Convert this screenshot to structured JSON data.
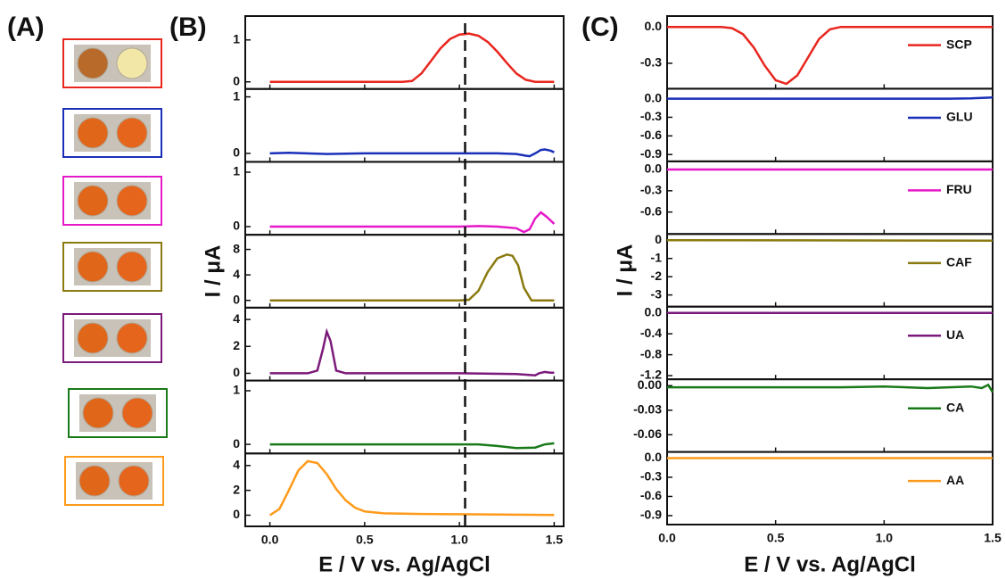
{
  "panel_labels": [
    "(A)",
    "(B)",
    "(C)"
  ],
  "chart_data": [
    {
      "type": "line",
      "xlabel": "E / V vs. Ag/AgCl",
      "ylabel": "I / μA",
      "xlim": [
        -0.13,
        1.55
      ],
      "xticks": [
        {
          "value": 0,
          "label": "0.0"
        },
        0.5,
        {
          "value": 1,
          "label": "1.0"
        },
        1.5
      ],
      "vline": 1.03,
      "subplots": [
        {
          "ylim": [
            -0.17,
            1.57
          ],
          "yticks": [
            0,
            1
          ],
          "x": [
            0,
            0.7,
            0.75,
            0.8,
            0.85,
            0.9,
            0.95,
            1.0,
            1.05,
            1.1,
            1.15,
            1.2,
            1.25,
            1.3,
            1.35,
            1.4,
            1.5
          ],
          "series": [
            {
              "color": "#e8261e",
              "values": [
                0,
                0,
                0.02,
                0.2,
                0.5,
                0.8,
                1.02,
                1.13,
                1.15,
                1.1,
                0.95,
                0.72,
                0.45,
                0.2,
                0.05,
                0,
                0
              ]
            }
          ]
        },
        {
          "ylim": [
            -0.15,
            1.14
          ],
          "yticks": [
            0,
            1
          ],
          "x": [
            0,
            0.1,
            0.3,
            0.5,
            1.0,
            1.2,
            1.3,
            1.35,
            1.37,
            1.4,
            1.43,
            1.45,
            1.48,
            1.5
          ],
          "series": [
            {
              "color": "#1a2fb8",
              "values": [
                0,
                0.01,
                -0.01,
                0,
                0,
                0,
                -0.01,
                -0.04,
                -0.05,
                0,
                0.06,
                0.07,
                0.05,
                0.02
              ]
            }
          ]
        },
        {
          "ylim": [
            -0.15,
            1.19
          ],
          "yticks": [
            0,
            1
          ],
          "x": [
            0,
            0.5,
            1.0,
            1.1,
            1.2,
            1.3,
            1.34,
            1.37,
            1.4,
            1.43,
            1.46,
            1.5
          ],
          "series": [
            {
              "color": "#e619c8",
              "values": [
                0,
                0,
                0,
                0.01,
                0,
                -0.03,
                -0.1,
                -0.05,
                0.15,
                0.26,
                0.18,
                0.05
              ]
            }
          ]
        },
        {
          "ylim": [
            -1.14,
            10.3
          ],
          "yticks": [
            0,
            4,
            8
          ],
          "x": [
            0,
            1.0,
            1.05,
            1.1,
            1.15,
            1.2,
            1.25,
            1.28,
            1.31,
            1.34,
            1.38,
            1.5
          ],
          "series": [
            {
              "color": "#8a7a10",
              "values": [
                0,
                0,
                0.1,
                1.5,
                4.5,
                6.6,
                7.2,
                7.0,
                5.5,
                2,
                0,
                0
              ]
            }
          ]
        },
        {
          "ylim": [
            -0.54,
            4.88
          ],
          "yticks": [
            0,
            2,
            4
          ],
          "x": [
            0,
            0.2,
            0.25,
            0.28,
            0.3,
            0.32,
            0.35,
            0.4,
            1.0,
            1.3,
            1.4,
            1.42,
            1.45,
            1.48,
            1.5
          ],
          "series": [
            {
              "color": "#7b1a7b",
              "values": [
                0,
                0,
                0.2,
                1.8,
                3.1,
                2.4,
                0.2,
                0,
                0,
                -0.05,
                -0.15,
                0,
                0.1,
                0.05,
                0.05
              ]
            }
          ]
        },
        {
          "ylim": [
            -0.17,
            1.19
          ],
          "yticks": [
            0,
            1
          ],
          "x": [
            0,
            0.5,
            1.0,
            1.1,
            1.2,
            1.3,
            1.4,
            1.45,
            1.5
          ],
          "series": [
            {
              "color": "#1a7a1a",
              "values": [
                0,
                0,
                0,
                0,
                -0.03,
                -0.07,
                -0.06,
                0,
                0.02
              ]
            }
          ]
        },
        {
          "ylim": [
            -0.9,
            4.97
          ],
          "yticks": [
            0,
            2,
            4
          ],
          "x": [
            0,
            0.05,
            0.1,
            0.15,
            0.2,
            0.25,
            0.3,
            0.35,
            0.4,
            0.45,
            0.5,
            0.6,
            0.8,
            1.0,
            1.5
          ],
          "series": [
            {
              "color": "#ff9a1a",
              "values": [
                0,
                0.5,
                2.0,
                3.6,
                4.35,
                4.2,
                3.3,
                2.1,
                1.2,
                0.6,
                0.3,
                0.15,
                0.1,
                0.08,
                0.02
              ]
            }
          ]
        }
      ]
    },
    {
      "type": "line",
      "xlabel": "E / V vs. Ag/AgCl",
      "ylabel": "I / μA",
      "xlim": [
        0,
        1.5
      ],
      "xticks": [
        {
          "value": 0,
          "label": "0.0"
        },
        0.5,
        {
          "value": 1,
          "label": "1.0"
        },
        1.5
      ],
      "subplots": [
        {
          "ylim": [
            -0.51,
            0.09
          ],
          "yticks": [
            {
              "value": 0,
              "label": "0.0"
            },
            -0.3
          ],
          "x": [
            0,
            0.25,
            0.3,
            0.35,
            0.4,
            0.45,
            0.5,
            0.55,
            0.6,
            0.65,
            0.7,
            0.75,
            0.8,
            1.5
          ],
          "series": [
            {
              "name": "SCP",
              "color": "#e8261e",
              "values": [
                0,
                0,
                -0.01,
                -0.06,
                -0.17,
                -0.32,
                -0.44,
                -0.47,
                -0.4,
                -0.25,
                -0.1,
                -0.02,
                0,
                0
              ]
            }
          ]
        },
        {
          "ylim": [
            -1.01,
            0.16
          ],
          "yticks": [
            {
              "value": 0,
              "label": "0.0"
            },
            -0.3,
            -0.6,
            -0.9
          ],
          "x": [
            0,
            0.5,
            1.0,
            1.3,
            1.4,
            1.5
          ],
          "series": [
            {
              "name": "GLU",
              "color": "#1a2fb8",
              "values": [
                0,
                0,
                0,
                0,
                0.005,
                0.02
              ]
            }
          ]
        },
        {
          "ylim": [
            -0.91,
            0.115
          ],
          "yticks": [
            {
              "value": 0,
              "label": "0.0"
            },
            -0.3,
            -0.6
          ],
          "x": [
            0,
            1.5
          ],
          "series": [
            {
              "name": "FRU",
              "color": "#e619c8",
              "values": [
                0,
                0
              ]
            }
          ]
        },
        {
          "ylim": [
            -3.64,
            0.34
          ],
          "yticks": [
            0,
            -1,
            -2,
            -3
          ],
          "x": [
            0,
            1.5
          ],
          "series": [
            {
              "name": "CAF",
              "color": "#8a7a10",
              "values": [
                0,
                -0.02
              ]
            }
          ]
        },
        {
          "ylim": [
            -1.27,
            0.12
          ],
          "yticks": [
            {
              "value": 0,
              "label": "0.0"
            },
            -0.4,
            -0.8,
            -1.2
          ],
          "x": [
            0,
            1.5
          ],
          "series": [
            {
              "name": "UA",
              "color": "#7b1a7b",
              "values": [
                0,
                0
              ]
            }
          ]
        },
        {
          "ylim": [
            -0.081,
            0.0078
          ],
          "yticks": [
            {
              "value": 0,
              "label": "0.00"
            },
            -0.03,
            -0.06
          ],
          "x": [
            0,
            0.5,
            0.8,
            1.0,
            1.2,
            1.3,
            1.4,
            1.45,
            1.48,
            1.5
          ],
          "series": [
            {
              "name": "CA",
              "color": "#1a7a1a",
              "values": [
                -0.002,
                -0.002,
                -0.002,
                -0.001,
                -0.003,
                -0.002,
                -0.001,
                -0.003,
                0.001,
                -0.008
              ]
            }
          ]
        },
        {
          "ylim": [
            -1.04,
            0.096
          ],
          "yticks": [
            {
              "value": 0,
              "label": "0.0"
            },
            -0.3,
            -0.6,
            -0.9
          ],
          "x": [
            0,
            1.5
          ],
          "series": [
            {
              "name": "AA",
              "color": "#ff9a1a",
              "values": [
                0,
                0
              ]
            }
          ]
        }
      ]
    }
  ]
}
